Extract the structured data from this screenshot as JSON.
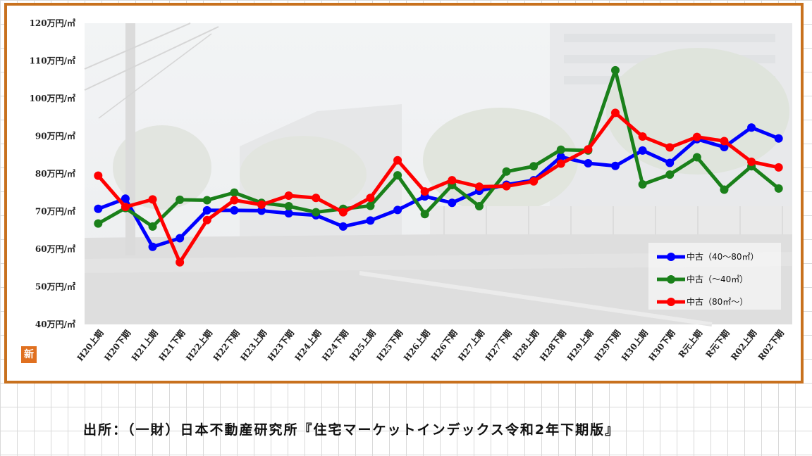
{
  "chart_data": {
    "type": "line",
    "title": "",
    "xlabel": "",
    "ylabel": "",
    "ylim": [
      40,
      120
    ],
    "yticks": [
      "40万円/㎡",
      "50万円/㎡",
      "60万円/㎡",
      "70万円/㎡",
      "80万円/㎡",
      "90万円/㎡",
      "100万円/㎡",
      "110万円/㎡",
      "120万円/㎡"
    ],
    "categories": [
      "H20上期",
      "H20下期",
      "H21上期",
      "H21下期",
      "H22上期",
      "H22下期",
      "H23上期",
      "H23下期",
      "H24上期",
      "H24下期",
      "H25上期",
      "H25下期",
      "H26上期",
      "H26下期",
      "H27上期",
      "H27下期",
      "H28上期",
      "H28下期",
      "H29上期",
      "H29下期",
      "H30上期",
      "H30下期",
      "R元上期",
      "R元下期",
      "R02上期",
      "R02下期"
    ],
    "legend_position": "bottom-right",
    "grid": false,
    "series": [
      {
        "name": "中古（40～80㎡）",
        "color": "#0000ff",
        "values": [
          70.7,
          73.4,
          60.6,
          62.9,
          70.3,
          70.3,
          70.2,
          69.5,
          69.0,
          66.0,
          67.6,
          70.4,
          74.0,
          72.3,
          75.5,
          77.1,
          78.3,
          84.5,
          82.8,
          82.1,
          86.2,
          82.9,
          89.2,
          87.1,
          92.3,
          89.4
        ]
      },
      {
        "name": "中古（～40㎡）",
        "color": "#1a801a",
        "values": [
          66.8,
          70.9,
          66.0,
          73.1,
          73.0,
          75.0,
          72.3,
          71.4,
          69.8,
          70.7,
          71.5,
          79.6,
          69.3,
          77.0,
          71.4,
          80.6,
          82.0,
          86.4,
          86.2,
          107.5,
          77.2,
          79.8,
          84.4,
          75.8,
          82.0,
          76.1
        ]
      },
      {
        "name": "中古（80㎡～）",
        "color": "#ff0000",
        "values": [
          79.5,
          71.2,
          73.2,
          56.5,
          67.7,
          73.0,
          71.8,
          74.2,
          73.6,
          69.8,
          73.6,
          83.6,
          75.3,
          78.3,
          76.6,
          76.7,
          78.0,
          82.7,
          86.5,
          96.2,
          89.9,
          87.0,
          89.8,
          88.7,
          83.2,
          81.7
        ]
      }
    ]
  },
  "source_text": "出所：（一財）日本不動産研究所『住宅マーケットインデックス令和2年下期版』",
  "badge_text": "新"
}
